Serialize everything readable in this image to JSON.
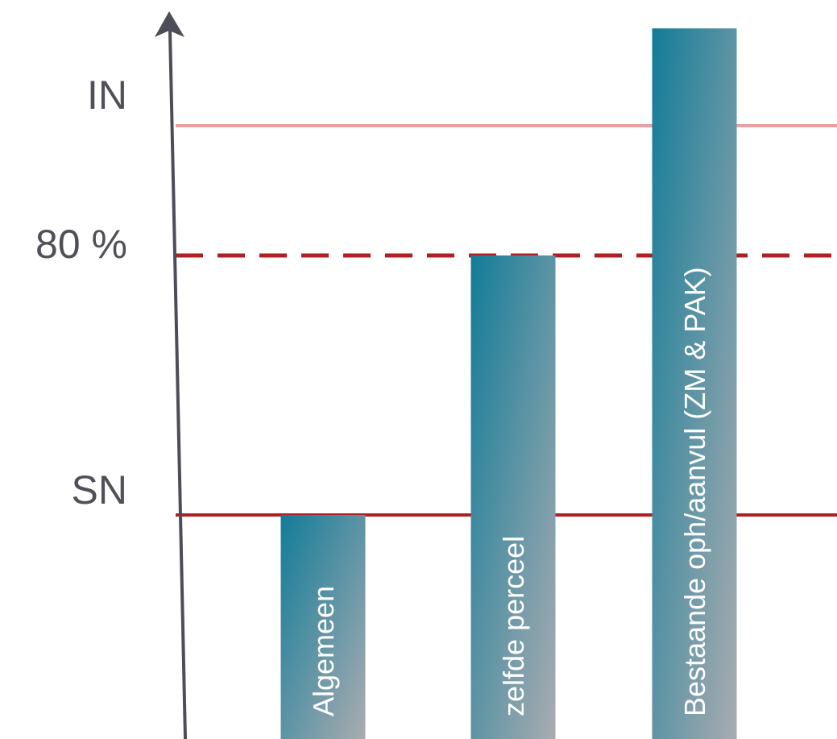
{
  "chart_data": {
    "type": "bar",
    "title": "",
    "xlabel": "",
    "ylabel": "",
    "ylim": [
      0,
      1.2
    ],
    "categories": [
      "Algemeen",
      "zelfde perceel",
      "Bestaande oph/aanvul (ZM & PAK)"
    ],
    "values": [
      0.4,
      0.8,
      1.15
    ],
    "reference_lines": [
      {
        "label": "IN",
        "value": 1.0,
        "color": "#e8a0a4",
        "style": "solid"
      },
      {
        "label": "80 %",
        "value": 0.8,
        "color": "#b01f24",
        "style": "dashed"
      },
      {
        "label": "SN",
        "value": 0.4,
        "color": "#b01f24",
        "style": "solid"
      }
    ],
    "bar_gradient": {
      "start": "#127c98",
      "end": "#a9acb1"
    },
    "axis_color": "#4d4d57",
    "grid": false,
    "legend": "none"
  }
}
